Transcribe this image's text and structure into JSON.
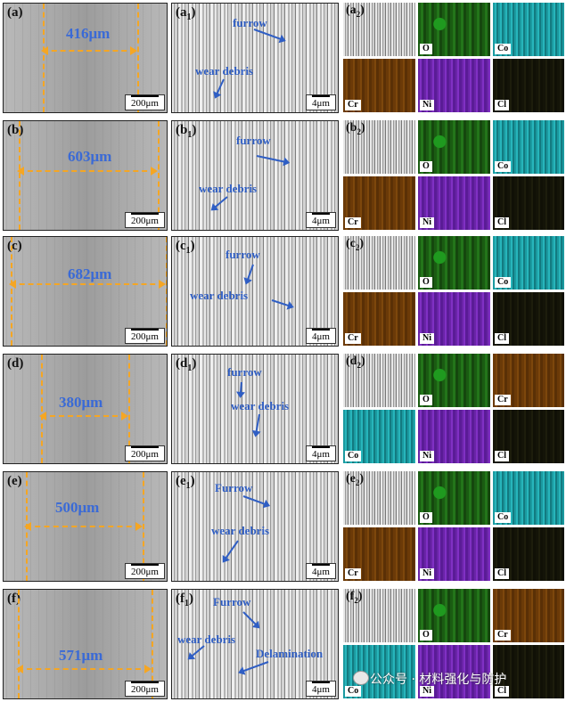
{
  "rows": [
    {
      "a_label": "(a)",
      "width": "416μm",
      "scale_a": "200μm",
      "b_label": "a",
      "b_sub": "1",
      "scale_b": "4μm",
      "annotations": [
        "furrow",
        "wear debris"
      ],
      "c_label": "a",
      "c_sub": "2",
      "maps": [
        "",
        "O",
        "Co",
        "Cr",
        "Ni",
        "Cl"
      ]
    },
    {
      "a_label": "(b)",
      "width": "603μm",
      "scale_a": "200μm",
      "b_label": "b",
      "b_sub": "1",
      "scale_b": "4μm",
      "annotations": [
        "furrow",
        "wear debris"
      ],
      "c_label": "b",
      "c_sub": "2",
      "maps": [
        "",
        "O",
        "Co",
        "Cr",
        "Ni",
        "Cl"
      ]
    },
    {
      "a_label": "(c)",
      "width": "682μm",
      "scale_a": "200μm",
      "b_label": "c",
      "b_sub": "1",
      "scale_b": "4μm",
      "annotations": [
        "furrow",
        "wear debris"
      ],
      "c_label": "c",
      "c_sub": "2",
      "maps": [
        "",
        "O",
        "Co",
        "Cr",
        "Ni",
        "Cl"
      ]
    },
    {
      "a_label": "(d)",
      "width": "380μm",
      "scale_a": "200μm",
      "b_label": "d",
      "b_sub": "1",
      "scale_b": "4μm",
      "annotations": [
        "furrow",
        "wear debris"
      ],
      "c_label": "d",
      "c_sub": "2",
      "maps": [
        "",
        "O",
        "Cr",
        "Co",
        "Ni",
        "Cl"
      ]
    },
    {
      "a_label": "(e)",
      "width": "500μm",
      "scale_a": "200μm",
      "b_label": "e",
      "b_sub": "1",
      "scale_b": "4μm",
      "annotations": [
        "Furrow",
        "wear debris"
      ],
      "c_label": "e",
      "c_sub": "2",
      "maps": [
        "",
        "O",
        "Co",
        "Cr",
        "Ni",
        "Cl"
      ]
    },
    {
      "a_label": "(f)",
      "width": "571μm",
      "scale_a": "200μm",
      "b_label": "f",
      "b_sub": "1",
      "scale_b": "4μm",
      "annotations": [
        "Furrow",
        "wear debris",
        "Delamination"
      ],
      "c_label": "f",
      "c_sub": "2",
      "maps": [
        "",
        "O",
        "Cr",
        "Co",
        "Ni",
        "Cl"
      ]
    }
  ],
  "watermark": "公众号 · 材料强化与防护",
  "colors": {
    "dimension": "#f5a623",
    "annotation": "#2f5ec4"
  }
}
